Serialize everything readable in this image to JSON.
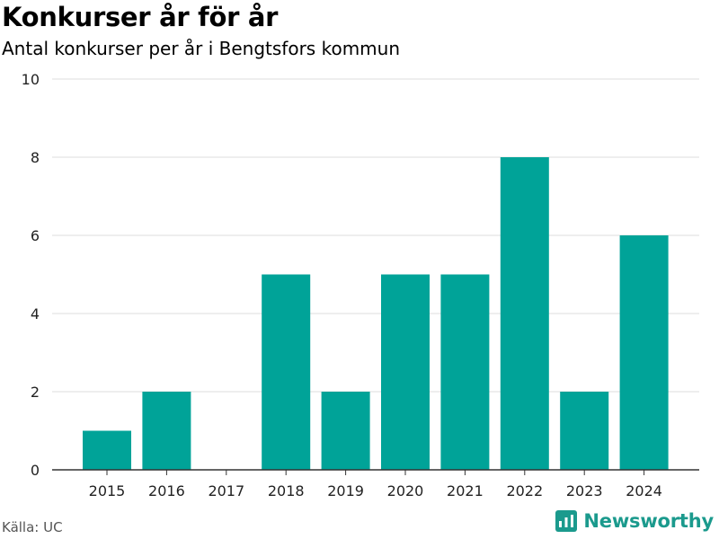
{
  "chart_data": {
    "type": "bar",
    "title": "Konkurser år för år",
    "subtitle": "Antal konkurser per år i Bengtsfors kommun",
    "categories": [
      "2015",
      "2016",
      "2017",
      "2018",
      "2019",
      "2020",
      "2021",
      "2022",
      "2023",
      "2024"
    ],
    "values": [
      1,
      2,
      0,
      5,
      2,
      5,
      5,
      8,
      2,
      6
    ],
    "xlabel": "",
    "ylabel": "",
    "ylim": [
      0,
      10
    ],
    "yticks": [
      0,
      2,
      4,
      6,
      8,
      10
    ],
    "grid": "horizontal",
    "legend": "none",
    "colors": {
      "bar": "#00a398",
      "grid": "#dddddd",
      "axis": "#333333"
    }
  },
  "footer": {
    "source": "Källa: UC",
    "brand": "Newsworthy",
    "brand_icon": "newsworthy-logo-icon",
    "brand_color": "#1b9a8d"
  }
}
